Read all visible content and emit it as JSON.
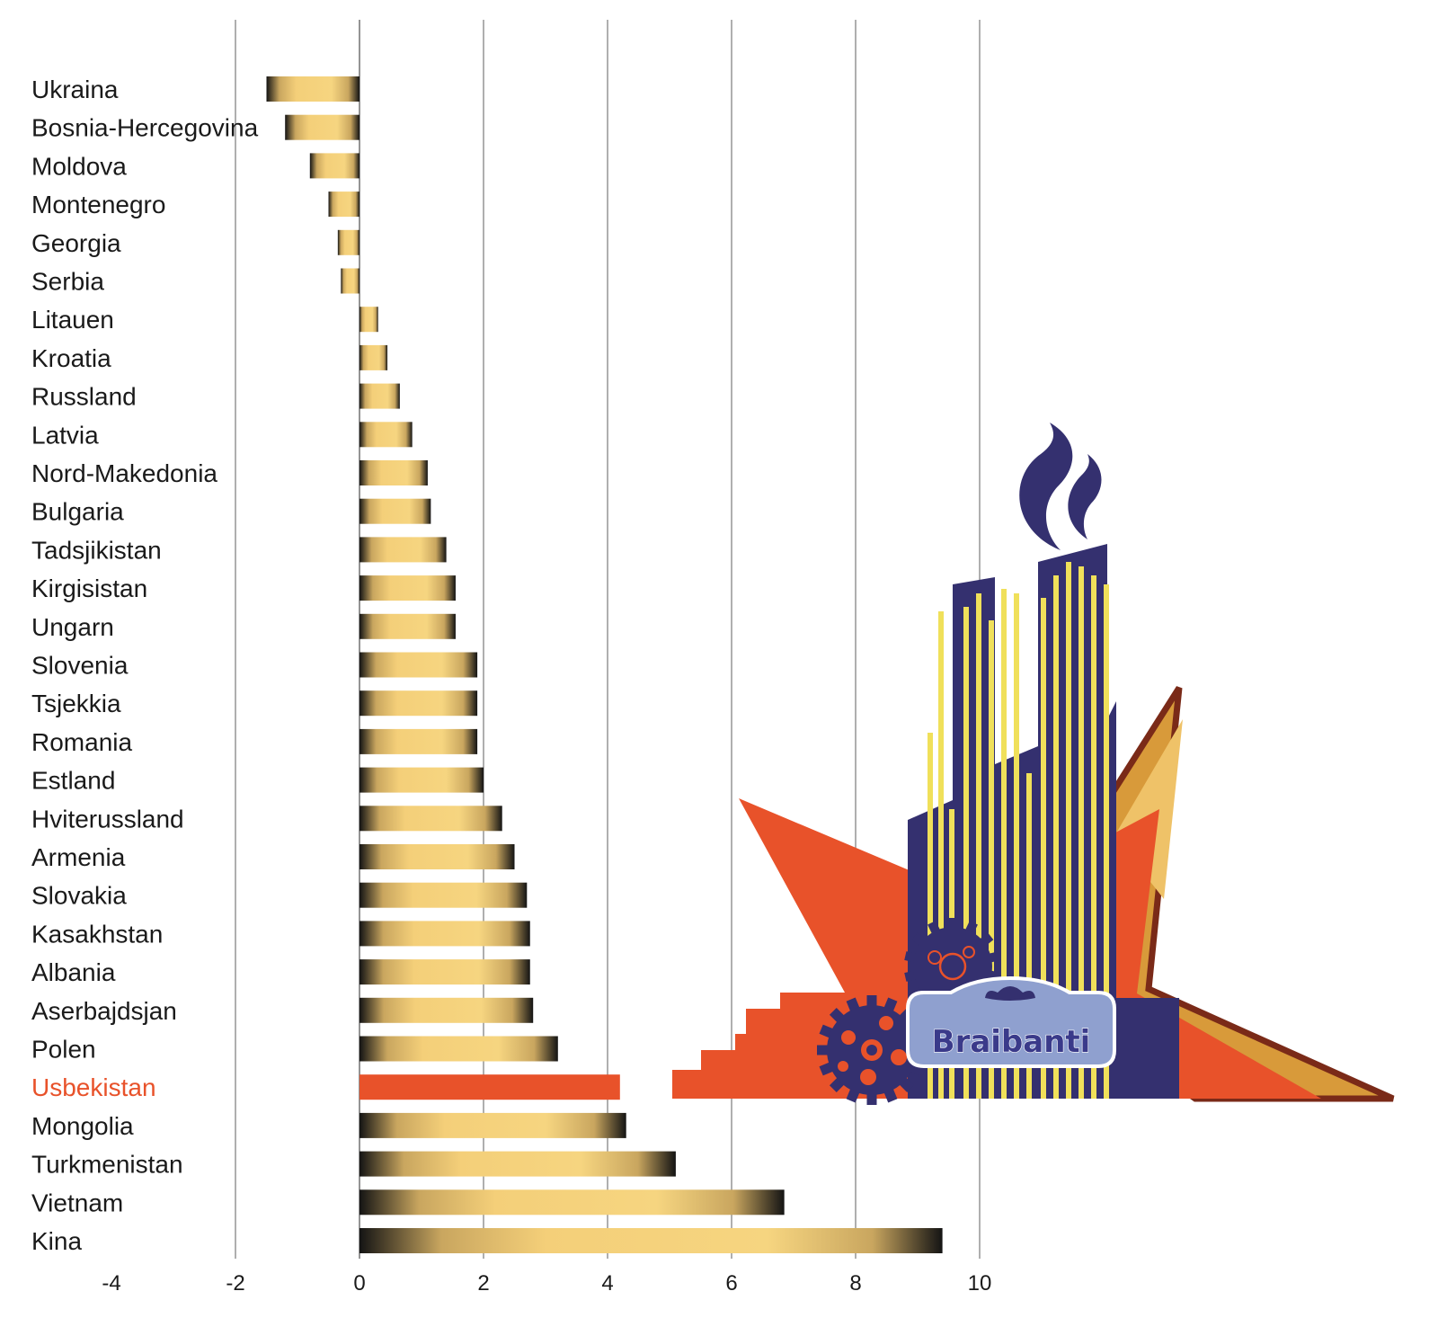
{
  "chart_data": {
    "type": "bar",
    "orientation": "horizontal",
    "categories": [
      "Ukraina",
      "Bosnia-Hercegovina",
      "Moldova",
      "Montenegro",
      "Georgia",
      "Serbia",
      "Litauen",
      "Kroatia",
      "Russland",
      "Latvia",
      "Nord-Makedonia",
      "Bulgaria",
      "Tadsjikistan",
      "Kirgisistan",
      "Ungarn",
      "Slovenia",
      "Tsjekkia",
      "Romania",
      "Estland",
      "Hviterussland",
      "Armenia",
      "Slovakia",
      "Kasakhstan",
      "Albania",
      "Aserbajdsjan",
      "Polen",
      "Usbekistan",
      "Mongolia",
      "Turkmenistan",
      "Vietnam",
      "Kina"
    ],
    "values": [
      -1.5,
      -1.2,
      -0.8,
      -0.5,
      -0.35,
      -0.3,
      0.3,
      0.45,
      0.65,
      0.85,
      1.1,
      1.15,
      1.4,
      1.55,
      1.55,
      1.9,
      1.9,
      1.9,
      2.0,
      2.3,
      2.5,
      2.7,
      2.75,
      2.75,
      2.8,
      3.2,
      4.2,
      4.3,
      5.1,
      6.85,
      9.4
    ],
    "highlight": "Usbekistan",
    "xlim": [
      -4,
      10
    ],
    "xticks": [
      "-4",
      "-2",
      "0",
      "2",
      "4",
      "6",
      "8",
      "10"
    ],
    "grid": true,
    "title": "",
    "xlabel": "",
    "ylabel": ""
  },
  "colors": {
    "bar_light": "#f6d27a",
    "bar_dark": "#141414",
    "highlight": "#e8522a",
    "grid": "#7a7a7a",
    "logo_navy": "#34306f",
    "logo_yellow": "#f0e05a",
    "logo_orange": "#e8522a",
    "logo_gold": "#d89a3a",
    "logo_brown": "#7a2a18",
    "logo_badge": "#8fa0cf"
  },
  "logo": {
    "name": "factory-star-illustration",
    "text": "Braibanti"
  }
}
